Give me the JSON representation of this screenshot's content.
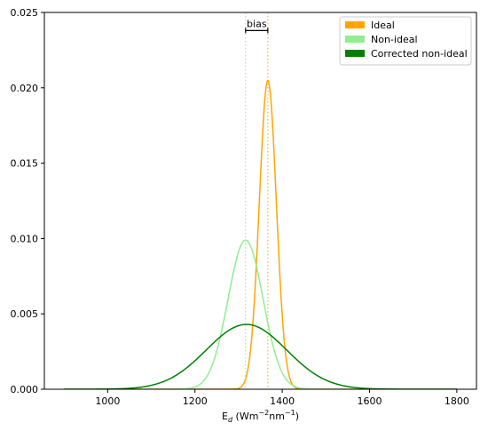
{
  "chart_data": {
    "type": "line",
    "xlabel_parts": [
      "E",
      "d",
      " (Wm",
      "−2",
      "nm",
      "−1",
      ")"
    ],
    "ylabel": "",
    "xlim": [
      855,
      1845
    ],
    "ylim": [
      0,
      0.025
    ],
    "xticks": [
      1000,
      1200,
      1400,
      1600,
      1800
    ],
    "xtick_labels": [
      "1000",
      "1200",
      "1400",
      "1600",
      "1800"
    ],
    "yticks": [
      0,
      0.005,
      0.01,
      0.015,
      0.02,
      0.025
    ],
    "ytick_labels": [
      "0.000",
      "0.005",
      "0.010",
      "0.015",
      "0.020",
      "0.025"
    ],
    "grid": false,
    "legend_position": "top-right",
    "series": [
      {
        "name": "Ideal",
        "color": "#ffa500",
        "mean": 1367,
        "sd": 19.5,
        "peak": 0.0205,
        "x_range": [
          900,
          1800
        ]
      },
      {
        "name": "Non-ideal",
        "color": "#90ee90",
        "mean": 1316,
        "sd": 40,
        "peak": 0.0099,
        "x_range": [
          900,
          1800
        ]
      },
      {
        "name": "Corrected non-ideal",
        "color": "#008000",
        "mean": 1318,
        "sd": 92,
        "peak": 0.0043,
        "x_range": [
          900,
          1800
        ]
      }
    ],
    "reference_lines": [
      {
        "x": 1316,
        "color": "#90ee90",
        "style": "dotted"
      },
      {
        "x": 1367,
        "color": "#ffa500",
        "style": "dotted"
      }
    ],
    "annotation": {
      "text": "bias",
      "x_from": 1316,
      "x_to": 1367,
      "y": 0.0238
    }
  }
}
